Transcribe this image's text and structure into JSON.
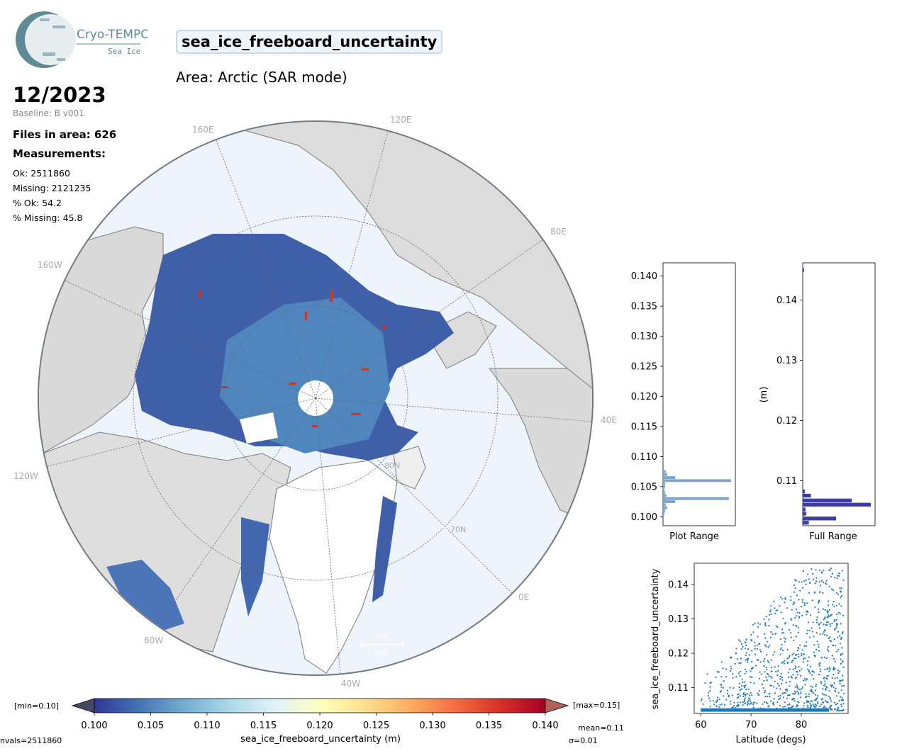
{
  "logo": {
    "name": "Cryo-TEMPO",
    "subtitle": "Sea Ice"
  },
  "title": "sea_ice_freeboard_uncertainty",
  "area": "Area: Arctic (SAR mode)",
  "date": "12/2023",
  "baseline": "Baseline: B v001",
  "files_in_area": "Files in area: 626",
  "measurements_label": "Measurements:",
  "stats": [
    "Ok: 2511860",
    "Missing: 2121235",
    "% Ok: 54.2",
    "% Missing: 45.8"
  ],
  "map": {
    "lon_labels": [
      "160E",
      "120E",
      "80E",
      "40E",
      "0E",
      "40W",
      "80W",
      "120W",
      "160W"
    ],
    "lat_labels": [
      "80N",
      "70N"
    ],
    "scale_bar": {
      "label_top": "km",
      "label_bottom": "500"
    }
  },
  "colorbar": {
    "min_label": "[min=0.10]",
    "max_label": "[max=0.15]",
    "ticks": [
      "0.100",
      "0.105",
      "0.110",
      "0.115",
      "0.120",
      "0.125",
      "0.130",
      "0.135",
      "0.140"
    ],
    "label": "sea_ice_freeboard_uncertainty (m)",
    "colors": [
      "#313695",
      "#4575b4",
      "#74add1",
      "#abd9e9",
      "#e0f3f8",
      "#ffffbf",
      "#fee090",
      "#fdae61",
      "#f46d43",
      "#d73027",
      "#a50026"
    ]
  },
  "footer": {
    "nvals": "nvals=2511860",
    "mean": "mean=0.11",
    "sigma": "σ=0.01"
  },
  "chart_data": [
    {
      "type": "bar",
      "orientation": "horizontal",
      "xlabel": "Plot Range",
      "ylim": [
        0.0985,
        0.1422
      ],
      "yticks": [
        "0.140",
        "0.135",
        "0.130",
        "0.125",
        "0.120",
        "0.115",
        "0.110",
        "0.105",
        "0.100"
      ],
      "bin_centers": [
        0.1005,
        0.101,
        0.1015,
        0.102,
        0.1025,
        0.103,
        0.1035,
        0.104,
        0.1045,
        0.105,
        0.1055,
        0.106,
        0.1065,
        0.107,
        0.1075
      ],
      "values": [
        2,
        3,
        6,
        4,
        18,
        97,
        5,
        3,
        2,
        3,
        3,
        100,
        18,
        6,
        4
      ],
      "color": "#7ba3cd"
    },
    {
      "type": "bar",
      "orientation": "horizontal",
      "xlabel": "Full Range",
      "ylabel": "(m)",
      "ylim": [
        0.1025,
        0.1462
      ],
      "yticks": [
        "0.14",
        "0.13",
        "0.12",
        "0.11"
      ],
      "bin_centers": [
        0.103,
        0.1037,
        0.1045,
        0.1052,
        0.106,
        0.1067,
        0.1075,
        0.1082,
        0.145
      ],
      "values": [
        9,
        49,
        5,
        4,
        100,
        72,
        12,
        3,
        2
      ],
      "color": "#3e3ea0"
    },
    {
      "type": "scatter",
      "xlabel": "Latitude (degs)",
      "ylabel": "sea_ice_freeboard_uncertainty",
      "xlim": [
        58.7,
        89.3
      ],
      "ylim": [
        0.1025,
        0.1462
      ],
      "xticks": [
        "60",
        "70",
        "80"
      ],
      "yticks": [
        "0.14",
        "0.13",
        "0.12",
        "0.11"
      ],
      "color": "#1f77b4"
    }
  ]
}
